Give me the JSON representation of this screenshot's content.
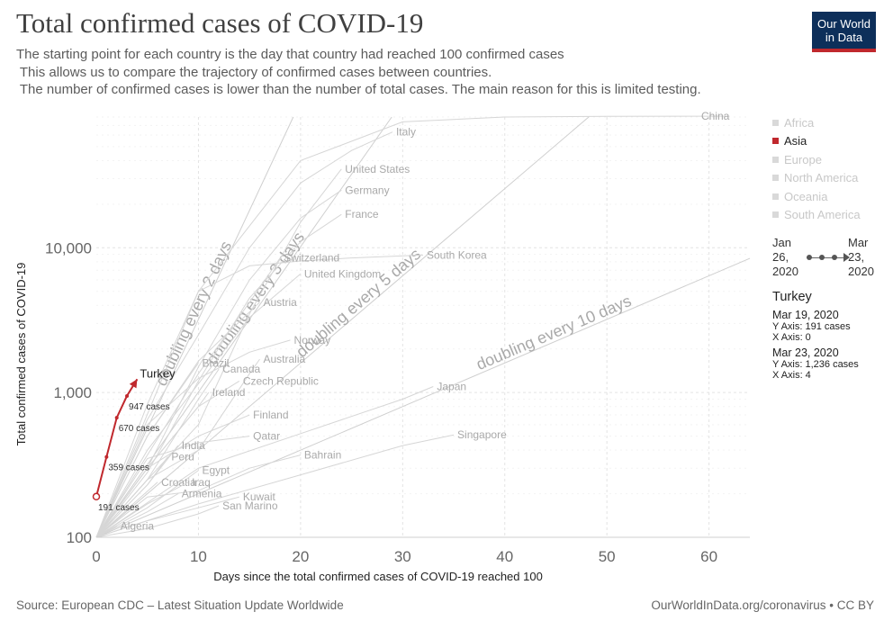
{
  "header": {
    "title": "Total confirmed cases of COVID-19",
    "subtitle": "The starting point for each country is the day that country had reached 100 confirmed cases\n This allows us to compare the trajectory of confirmed cases between countries.\n The number of confirmed cases is lower than the number of total cases. The main reason for this is limited testing."
  },
  "logo": {
    "line1": "Our World",
    "line2": "in Data"
  },
  "footer": {
    "source": "Source: European CDC – Latest Situation Update Worldwide",
    "link": "OurWorldInData.org/coronavirus • CC BY"
  },
  "legend": {
    "items": [
      {
        "label": "Africa",
        "active": false
      },
      {
        "label": "Asia",
        "active": true
      },
      {
        "label": "Europe",
        "active": false
      },
      {
        "label": "North America",
        "active": false
      },
      {
        "label": "Oceania",
        "active": false
      },
      {
        "label": "South America",
        "active": false
      }
    ]
  },
  "timeline": {
    "start": "Jan\n26,\n2020",
    "end": "Mar\n23,\n2020"
  },
  "info": {
    "country": "Turkey",
    "first": {
      "date": "Mar 19, 2020",
      "y": "Y Axis: 191 cases",
      "x": "X Axis: 0"
    },
    "last": {
      "date": "Mar 23, 2020",
      "y": "Y Axis: 1,236 cases",
      "x": "X Axis: 4"
    }
  },
  "colors": {
    "highlight": "#c0282d",
    "faded": "#cccccc",
    "background": "#ffffff"
  },
  "chart_data": {
    "type": "line",
    "xlabel": "Days since the total confirmed cases of COVID-19 reached 100",
    "ylabel": "Total confirmed cases of COVID-19",
    "x_scale": "linear",
    "y_scale": "log",
    "xlim": [
      0,
      64
    ],
    "ylim": [
      100,
      80000
    ],
    "x_ticks": [
      0,
      10,
      20,
      30,
      40,
      50,
      60
    ],
    "y_ticks": [
      {
        "value": 100,
        "label": "100"
      },
      {
        "value": 1000,
        "label": "1,000"
      },
      {
        "value": 10000,
        "label": "10,000"
      }
    ],
    "grid": true,
    "highlight_series": {
      "name": "Turkey",
      "x": [
        0,
        1,
        2,
        3,
        4
      ],
      "y": [
        191,
        359,
        670,
        947,
        1236
      ],
      "point_labels": [
        "191 cases",
        "359 cases",
        "670 cases",
        "947 cases",
        ""
      ]
    },
    "reference_lines": [
      {
        "label": "doubling every 2 days",
        "doubling_days": 2
      },
      {
        "label": "doubling every 3 days",
        "doubling_days": 3
      },
      {
        "label": "doubling every 5 days",
        "doubling_days": 5
      },
      {
        "label": "doubling every 10 days",
        "doubling_days": 10
      }
    ],
    "faded_series": [
      {
        "name": "China",
        "x": [
          0,
          10,
          20,
          30,
          40,
          50,
          62
        ],
        "y": [
          100,
          5000,
          40000,
          74000,
          80000,
          80800,
          81000
        ]
      },
      {
        "name": "Italy",
        "x": [
          0,
          5,
          10,
          15,
          20,
          25,
          29
        ],
        "y": [
          100,
          650,
          2500,
          10000,
          28000,
          47000,
          63000
        ]
      },
      {
        "name": "United States",
        "x": [
          0,
          5,
          10,
          15,
          20,
          24
        ],
        "y": [
          100,
          250,
          600,
          3500,
          15000,
          35000
        ]
      },
      {
        "name": "Germany",
        "x": [
          0,
          5,
          10,
          15,
          20,
          24
        ],
        "y": [
          100,
          300,
          1500,
          6000,
          16000,
          25000
        ]
      },
      {
        "name": "France",
        "x": [
          0,
          5,
          10,
          15,
          20,
          24
        ],
        "y": [
          100,
          280,
          1200,
          4500,
          11000,
          17000
        ]
      },
      {
        "name": "South Korea",
        "x": [
          0,
          5,
          10,
          15,
          20,
          25,
          32
        ],
        "y": [
          100,
          830,
          5000,
          7500,
          8100,
          8500,
          8900
        ]
      },
      {
        "name": "Switzerland",
        "x": [
          0,
          5,
          10,
          15,
          18
        ],
        "y": [
          100,
          370,
          1350,
          4200,
          8500
        ]
      },
      {
        "name": "United Kingdom",
        "x": [
          0,
          5,
          10,
          15,
          20
        ],
        "y": [
          100,
          400,
          1150,
          3300,
          6600
        ]
      },
      {
        "name": "Austria",
        "x": [
          0,
          5,
          10,
          15,
          16
        ],
        "y": [
          100,
          500,
          1650,
          3600,
          4200
        ]
      },
      {
        "name": "Norway",
        "x": [
          0,
          5,
          10,
          15,
          19
        ],
        "y": [
          100,
          600,
          1250,
          1900,
          2300
        ]
      },
      {
        "name": "Australia",
        "x": [
          0,
          5,
          10,
          15,
          16
        ],
        "y": [
          100,
          250,
          400,
          1350,
          1700
        ]
      },
      {
        "name": "Brazil",
        "x": [
          0,
          5,
          10
        ],
        "y": [
          100,
          500,
          1600
        ]
      },
      {
        "name": "Canada",
        "x": [
          0,
          5,
          10,
          12
        ],
        "y": [
          100,
          250,
          900,
          1450
        ]
      },
      {
        "name": "Czech Republic",
        "x": [
          0,
          5,
          10,
          14
        ],
        "y": [
          100,
          300,
          800,
          1200
        ]
      },
      {
        "name": "Ireland",
        "x": [
          0,
          5,
          10,
          11
        ],
        "y": [
          100,
          300,
          800,
          1000
        ]
      },
      {
        "name": "Japan",
        "x": [
          0,
          10,
          20,
          30,
          33
        ],
        "y": [
          100,
          300,
          520,
          900,
          1100
        ]
      },
      {
        "name": "Finland",
        "x": [
          0,
          5,
          10,
          15
        ],
        "y": [
          100,
          300,
          500,
          700
        ]
      },
      {
        "name": "Qatar",
        "x": [
          0,
          5,
          10,
          15
        ],
        "y": [
          100,
          350,
          450,
          500
        ]
      },
      {
        "name": "India",
        "x": [
          0,
          5,
          8
        ],
        "y": [
          100,
          230,
          430
        ]
      },
      {
        "name": "Singapore",
        "x": [
          0,
          10,
          20,
          30,
          35
        ],
        "y": [
          100,
          170,
          270,
          430,
          510
        ]
      },
      {
        "name": "Bahrain",
        "x": [
          0,
          5,
          10,
          15,
          20
        ],
        "y": [
          100,
          190,
          210,
          300,
          370
        ]
      },
      {
        "name": "Peru",
        "x": [
          0,
          5,
          7
        ],
        "y": [
          100,
          230,
          360
        ]
      },
      {
        "name": "Egypt",
        "x": [
          0,
          5,
          10
        ],
        "y": [
          100,
          160,
          290
        ]
      },
      {
        "name": "Croatia",
        "x": [
          0,
          4,
          6
        ],
        "y": [
          100,
          180,
          240
        ]
      },
      {
        "name": "Iraq",
        "x": [
          0,
          5,
          9
        ],
        "y": [
          100,
          170,
          240
        ]
      },
      {
        "name": "Armenia",
        "x": [
          0,
          5,
          8
        ],
        "y": [
          100,
          150,
          200
        ]
      },
      {
        "name": "Kuwait",
        "x": [
          0,
          5,
          10,
          14
        ],
        "y": [
          100,
          130,
          160,
          190
        ]
      },
      {
        "name": "San Marino",
        "x": [
          0,
          5,
          10,
          12
        ],
        "y": [
          100,
          115,
          145,
          165
        ]
      },
      {
        "name": "Algeria",
        "x": [
          0,
          2
        ],
        "y": [
          100,
          120
        ]
      }
    ]
  }
}
